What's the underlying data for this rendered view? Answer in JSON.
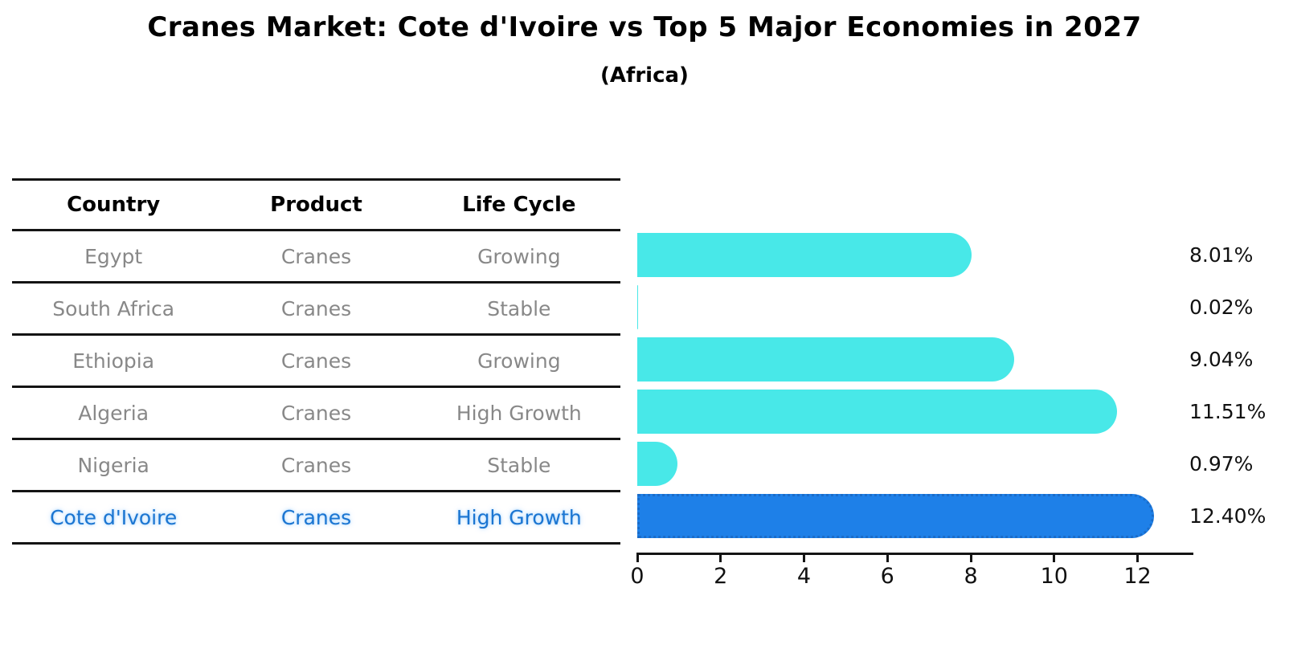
{
  "header": {
    "title": "Cranes Market: Cote d'Ivoire vs Top 5 Major Economies in 2027",
    "subtitle": "(Africa)"
  },
  "table": {
    "columns": [
      "Country",
      "Product",
      "Life Cycle"
    ],
    "rows": [
      {
        "country": "Egypt",
        "product": "Cranes",
        "life_cycle": "Growing",
        "highlight": false
      },
      {
        "country": "South Africa",
        "product": "Cranes",
        "life_cycle": "Stable",
        "highlight": false
      },
      {
        "country": "Ethiopia",
        "product": "Cranes",
        "life_cycle": "Growing",
        "highlight": false
      },
      {
        "country": "Algeria",
        "product": "Cranes",
        "life_cycle": "High Growth",
        "highlight": false
      },
      {
        "country": "Nigeria",
        "product": "Cranes",
        "life_cycle": "Stable",
        "highlight": false
      },
      {
        "country": "Cote d'Ivoire",
        "product": "Cranes",
        "life_cycle": "High Growth",
        "highlight": true
      }
    ]
  },
  "chart_data": {
    "type": "bar",
    "orientation": "horizontal",
    "title": "Cranes Market: Cote d'Ivoire vs Top 5 Major Economies in 2027",
    "subtitle": "(Africa)",
    "categories": [
      "Egypt",
      "South Africa",
      "Ethiopia",
      "Algeria",
      "Nigeria",
      "Cote d'Ivoire"
    ],
    "values": [
      8.01,
      0.02,
      9.04,
      11.51,
      0.97,
      12.4
    ],
    "value_labels": [
      "8.01%",
      "0.02%",
      "9.04%",
      "11.51%",
      "0.97%",
      "12.40%"
    ],
    "xlabel": "",
    "ylabel": "",
    "xlim": [
      0,
      13.3
    ],
    "x_ticks": [
      0,
      2,
      4,
      6,
      8,
      10,
      12
    ],
    "grid": false,
    "legend": false,
    "highlight_index": 5,
    "bar_color_default": "#48e8e8",
    "bar_color_highlight": "#1e80e8"
  },
  "colors": {
    "bar_default": "#48e8e8",
    "bar_highlight": "#1e80e8",
    "highlight_text": "#1b75d1",
    "table_text": "#888888",
    "axis": "#141414"
  }
}
